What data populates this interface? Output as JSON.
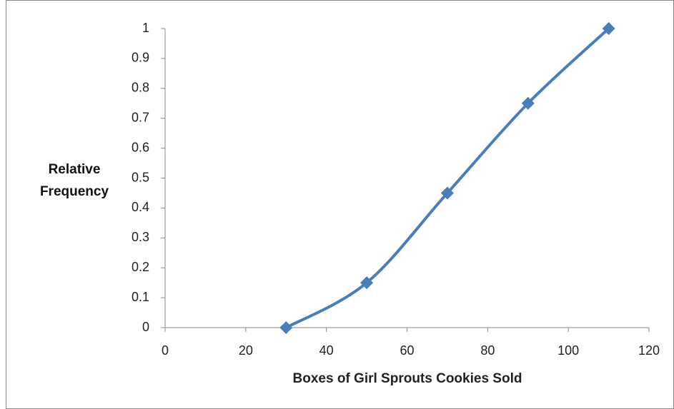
{
  "chart_data": {
    "type": "line",
    "x_label": "Boxes of Girl Sprouts Cookies Sold",
    "y_label": "Relative Frequency",
    "x": [
      30,
      50,
      70,
      90,
      110
    ],
    "series": [
      {
        "name": "Relative Frequency",
        "color": "#4a7ebb",
        "values": [
          0,
          0.15,
          0.45,
          0.75,
          1
        ]
      }
    ],
    "xlim": [
      0,
      120
    ],
    "xticks": [
      0,
      20,
      40,
      60,
      80,
      100,
      120
    ],
    "ylim": [
      0,
      1
    ],
    "yticks": [
      0,
      0.1,
      0.2,
      0.3,
      0.4,
      0.5,
      0.6,
      0.7,
      0.8,
      0.9,
      1
    ],
    "grid": false,
    "smooth": true,
    "legend": false
  }
}
